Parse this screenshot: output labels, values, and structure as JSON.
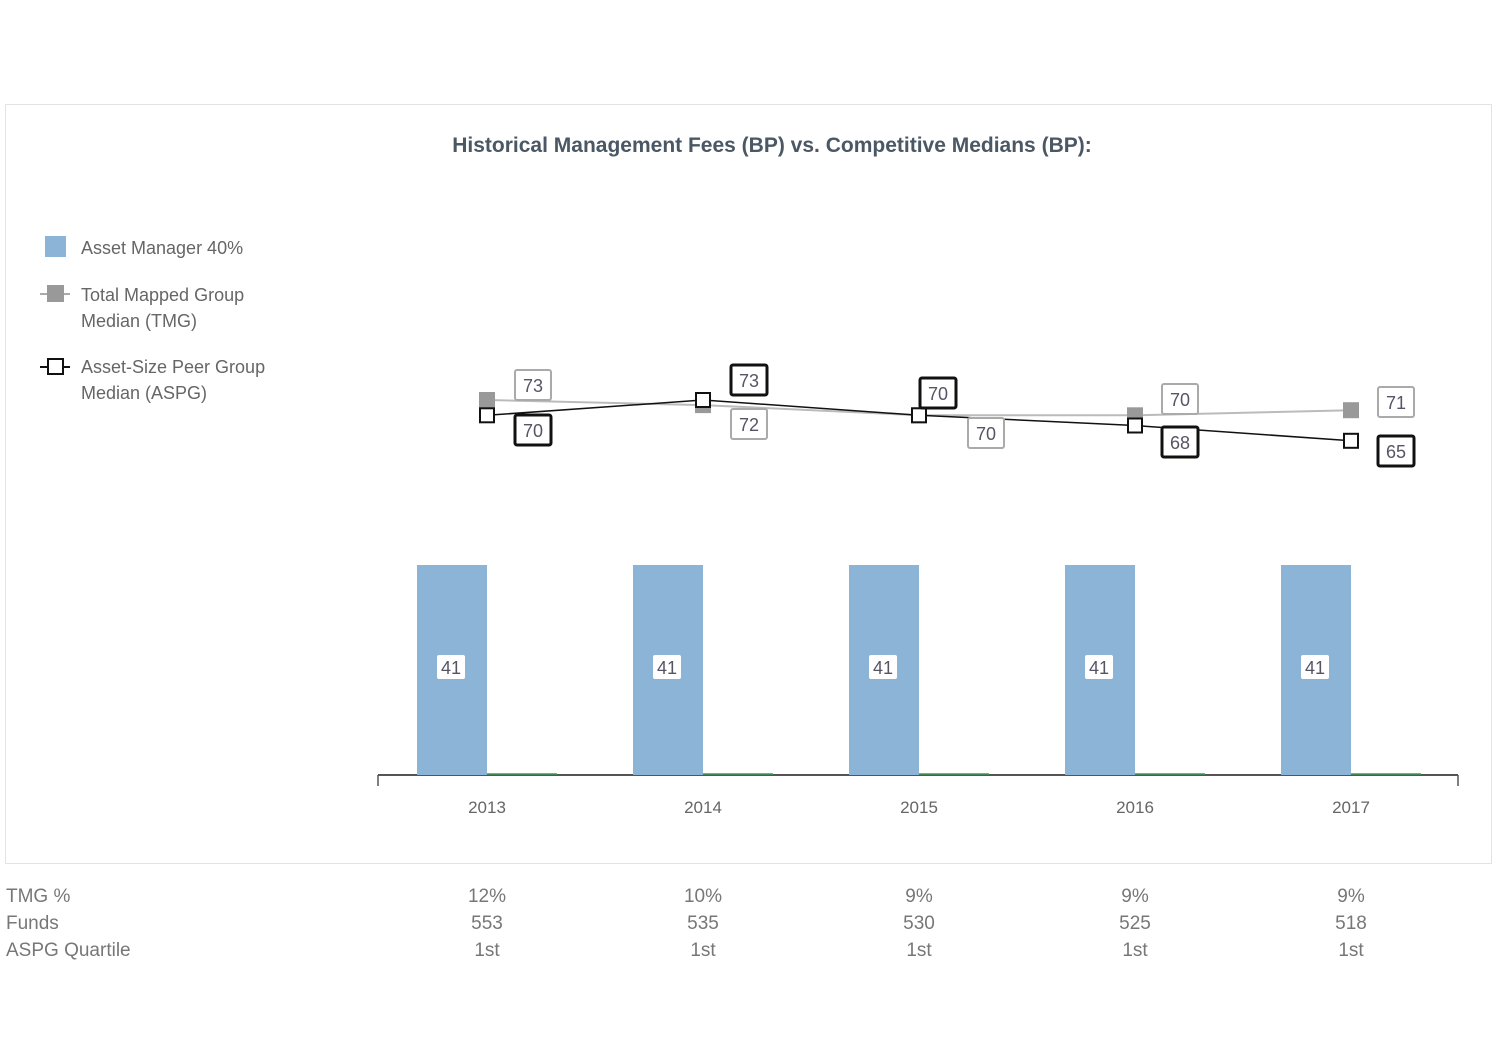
{
  "chart_data": {
    "type": "bar+line",
    "title": "Historical Management Fees (BP) vs. Competitive Medians (BP):",
    "categories": [
      "2013",
      "2014",
      "2015",
      "2016",
      "2017"
    ],
    "series": [
      {
        "name": "Asset Manager 40%",
        "type": "bar",
        "color": "#8cb4d7",
        "values": [
          41,
          41,
          41,
          41,
          41
        ]
      },
      {
        "name": "Total Mapped Group Median (TMG)",
        "type": "line",
        "color": "#999999",
        "values": [
          73,
          72,
          70,
          70,
          71
        ]
      },
      {
        "name": "Asset-Size Peer Group Median (ASPG)",
        "type": "line",
        "color": "#111111",
        "values": [
          70,
          73,
          70,
          68,
          65
        ]
      }
    ],
    "legend": {
      "placement": "left",
      "items": [
        "Asset Manager 40%",
        "Total Mapped Group Median (TMG)",
        "Asset-Size Peer Group Median (ASPG)"
      ]
    },
    "xlabel": "",
    "ylabel": ""
  },
  "table": {
    "rows": [
      {
        "label": "TMG %",
        "values": [
          "12%",
          "10%",
          "9%",
          "9%",
          "9%"
        ]
      },
      {
        "label": "Funds",
        "values": [
          "553",
          "535",
          "530",
          "525",
          "518"
        ]
      },
      {
        "label": "ASPG Quartile",
        "values": [
          "1st",
          "1st",
          "1st",
          "1st",
          "1st"
        ]
      }
    ]
  }
}
